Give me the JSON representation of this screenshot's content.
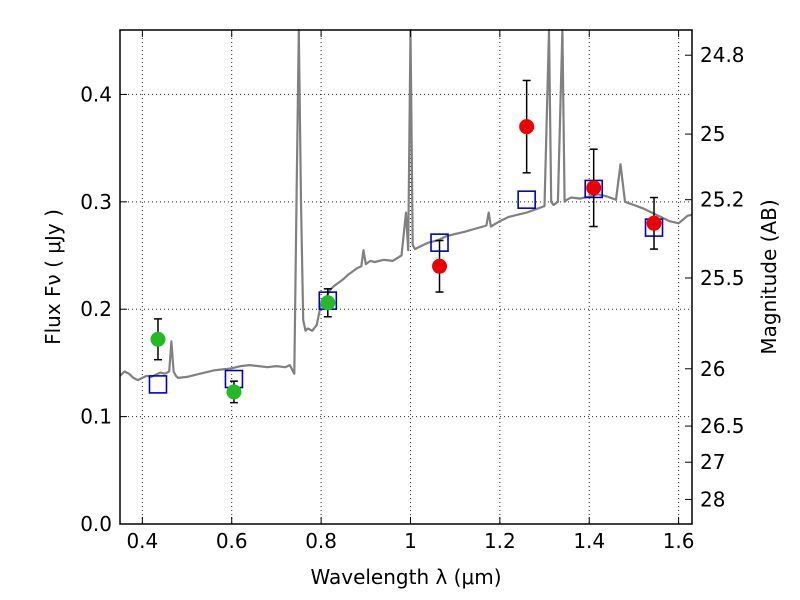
{
  "chart_data": {
    "type": "scatter",
    "xlabel": "Wavelength  λ (μm)",
    "ylabel": "Flux  Fν  ( μJy )",
    "ylabel_right": "Magnitude (AB)",
    "xlim": [
      0.35,
      1.63
    ],
    "ylim": [
      0.0,
      0.46
    ],
    "grid": true,
    "x_ticks": [
      {
        "value": 0.4,
        "label": "0.4"
      },
      {
        "value": 0.6,
        "label": "0.6"
      },
      {
        "value": 0.8,
        "label": "0.8"
      },
      {
        "value": 1.0,
        "label": "1"
      },
      {
        "value": 1.2,
        "label": "1.2"
      },
      {
        "value": 1.4,
        "label": "1.4"
      },
      {
        "value": 1.6,
        "label": "1.6"
      }
    ],
    "y_ticks": [
      {
        "value": 0.0,
        "label": "0.0"
      },
      {
        "value": 0.1,
        "label": "0.1"
      },
      {
        "value": 0.2,
        "label": "0.2"
      },
      {
        "value": 0.3,
        "label": "0.3"
      },
      {
        "value": 0.4,
        "label": "0.4"
      }
    ],
    "right_ticks": [
      {
        "value": 24.8,
        "label": "24.8"
      },
      {
        "value": 25.0,
        "label": "25"
      },
      {
        "value": 25.2,
        "label": "25.2"
      },
      {
        "value": 25.5,
        "label": "25.5"
      },
      {
        "value": 26.0,
        "label": "26"
      },
      {
        "value": 26.5,
        "label": "26.5"
      },
      {
        "value": 27.0,
        "label": "27"
      },
      {
        "value": 28.0,
        "label": "28"
      }
    ],
    "series": [
      {
        "kind": "spectrum",
        "color": "#808080",
        "x": [
          0.35,
          0.36,
          0.37,
          0.38,
          0.39,
          0.4,
          0.41,
          0.42,
          0.43,
          0.44,
          0.45,
          0.46,
          0.465,
          0.47,
          0.475,
          0.48,
          0.5,
          0.52,
          0.54,
          0.56,
          0.58,
          0.6,
          0.62,
          0.64,
          0.66,
          0.68,
          0.7,
          0.72,
          0.73,
          0.74,
          0.745,
          0.75,
          0.755,
          0.76,
          0.765,
          0.77,
          0.78,
          0.79,
          0.8,
          0.81,
          0.82,
          0.83,
          0.84,
          0.85,
          0.86,
          0.87,
          0.88,
          0.89,
          0.895,
          0.9,
          0.91,
          0.92,
          0.94,
          0.96,
          0.98,
          0.99,
          0.995,
          1.0,
          1.005,
          1.01,
          1.02,
          1.04,
          1.06,
          1.08,
          1.1,
          1.12,
          1.17,
          1.175,
          1.18,
          1.2,
          1.22,
          1.24,
          1.26,
          1.28,
          1.3,
          1.31,
          1.315,
          1.32,
          1.33,
          1.34,
          1.345,
          1.35,
          1.36,
          1.38,
          1.4,
          1.42,
          1.44,
          1.46,
          1.47,
          1.48,
          1.5,
          1.52,
          1.54,
          1.56,
          1.58,
          1.6,
          1.62,
          1.63
        ],
        "y": [
          0.138,
          0.142,
          0.14,
          0.136,
          0.134,
          0.136,
          0.138,
          0.137,
          0.139,
          0.141,
          0.14,
          0.142,
          0.17,
          0.142,
          0.138,
          0.136,
          0.137,
          0.139,
          0.141,
          0.143,
          0.144,
          0.145,
          0.147,
          0.148,
          0.147,
          0.146,
          0.147,
          0.146,
          0.148,
          0.14,
          0.3,
          0.46,
          0.3,
          0.19,
          0.18,
          0.182,
          0.18,
          0.185,
          0.205,
          0.21,
          0.218,
          0.222,
          0.225,
          0.228,
          0.232,
          0.235,
          0.238,
          0.24,
          0.255,
          0.242,
          0.245,
          0.244,
          0.246,
          0.245,
          0.25,
          0.29,
          0.255,
          0.46,
          0.26,
          0.256,
          0.258,
          0.262,
          0.264,
          0.268,
          0.27,
          0.272,
          0.278,
          0.29,
          0.277,
          0.282,
          0.286,
          0.288,
          0.29,
          0.293,
          0.296,
          0.46,
          0.3,
          0.297,
          0.3,
          0.46,
          0.3,
          0.302,
          0.304,
          0.303,
          0.305,
          0.307,
          0.305,
          0.302,
          0.335,
          0.3,
          0.297,
          0.294,
          0.29,
          0.286,
          0.282,
          0.28,
          0.287,
          0.288
        ]
      },
      {
        "kind": "model-photometry",
        "marker": "open-square",
        "color": "#0000cc",
        "x": [
          0.435,
          0.605,
          0.815,
          1.065,
          1.26,
          1.41,
          1.545
        ],
        "y": [
          0.13,
          0.135,
          0.208,
          0.262,
          0.302,
          0.312,
          0.276
        ]
      },
      {
        "kind": "observed-optical",
        "marker": "filled-circle",
        "color": "#22bb22",
        "x": [
          0.435,
          0.605,
          0.815
        ],
        "y": [
          0.172,
          0.123,
          0.206
        ],
        "yerr": [
          0.019,
          0.01,
          0.013
        ]
      },
      {
        "kind": "observed-nir",
        "marker": "filled-circle",
        "color": "#ee0000",
        "x": [
          1.065,
          1.26,
          1.41,
          1.545
        ],
        "y": [
          0.24,
          0.37,
          0.313,
          0.28
        ],
        "yerr": [
          0.024,
          0.043,
          0.036,
          0.024
        ]
      }
    ]
  }
}
